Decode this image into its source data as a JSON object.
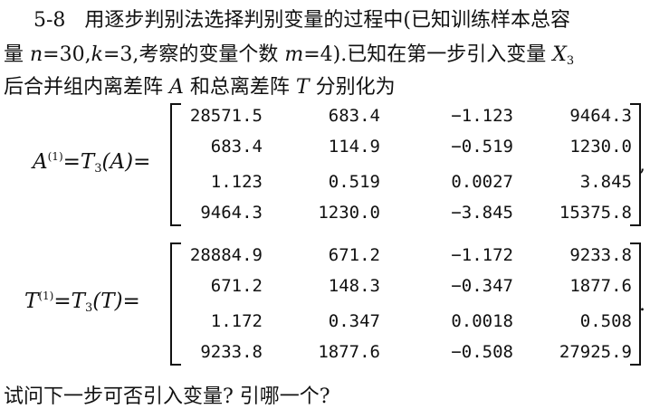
{
  "problem": {
    "number": "5-8",
    "line1": "用逐步判别法选择判别变量的过程中(已知训练样本总容",
    "line2_a": "量 ",
    "n_var": "n",
    "line2_b": "=30,",
    "k_var": "k",
    "line2_c": "=3,考察的变量个数 ",
    "m_var": "m",
    "line2_d": "=4).已知在第一步引入变量 ",
    "x_var": "X",
    "x_sub": "3",
    "line3_a": "后合并组内离差阵 ",
    "a_var": "A",
    "line3_b": " 和总离差阵 ",
    "t_var": "T",
    "line3_c": " 分别化为",
    "question": "试问下一步可否引入变量? 引哪一个?"
  },
  "matrixA": {
    "lhs_var": "A",
    "lhs_sup": "(1)",
    "lhs_eq": "=",
    "lhs_t": "T",
    "lhs_sub": "3",
    "lhs_arg": "(A)=",
    "trail": ",",
    "rows": [
      [
        "28571.5",
        "683.4",
        "−1.123",
        "9464.3"
      ],
      [
        "683.4",
        "114.9",
        "−0.519",
        "1230.0"
      ],
      [
        "1.123",
        "0.519",
        "0.0027",
        "3.845"
      ],
      [
        "9464.3",
        "1230.0",
        "−3.845",
        "15375.8"
      ]
    ]
  },
  "matrixT": {
    "lhs_var": "T",
    "lhs_sup": "(1)",
    "lhs_eq": "=",
    "lhs_t": "T",
    "lhs_sub": "3",
    "lhs_arg": "(T)=",
    "trail": ".",
    "rows": [
      [
        "28884.9",
        "671.2",
        "−1.172",
        "9233.8"
      ],
      [
        "671.2",
        "148.3",
        "−0.347",
        "1877.6"
      ],
      [
        "1.172",
        "0.347",
        "0.0018",
        "0.508"
      ],
      [
        "9233.8",
        "1877.6",
        "−0.508",
        "27925.9"
      ]
    ]
  }
}
